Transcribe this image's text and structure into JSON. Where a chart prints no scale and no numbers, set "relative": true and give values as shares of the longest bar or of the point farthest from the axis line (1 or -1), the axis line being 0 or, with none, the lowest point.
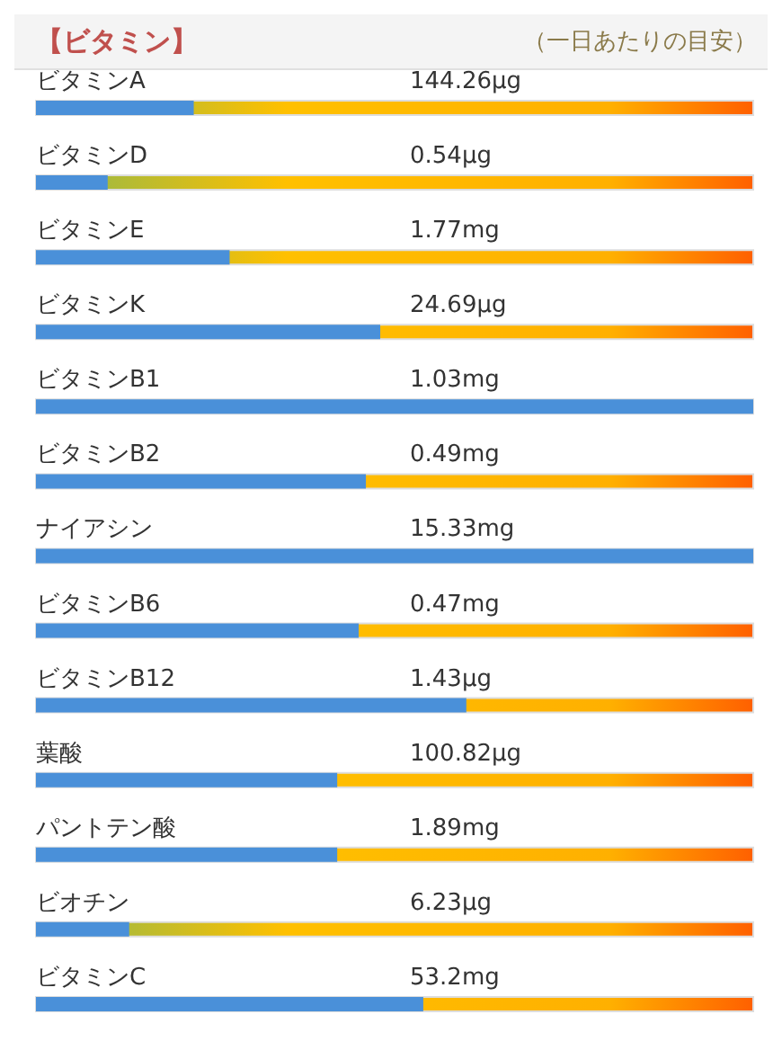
{
  "chart_data": {
    "type": "bar",
    "orientation": "horizontal",
    "relative": true,
    "title": "【ビタミン】",
    "subtitle": "（一日あたりの目安）",
    "categories": [
      "ビタミンA",
      "ビタミンD",
      "ビタミンE",
      "ビタミンK",
      "ビタミンB1",
      "ビタミンB2",
      "ナイアシン",
      "ビタミンB6",
      "ビタミンB12",
      "葉酸",
      "パントテン酸",
      "ビオチン",
      "ビタミンC"
    ],
    "values": [
      0.22,
      0.1,
      0.27,
      0.48,
      1,
      0.46,
      1,
      0.45,
      0.6,
      0.42,
      0.42,
      0.13,
      0.54
    ],
    "annotations": [
      "144.26μg",
      "0.54μg",
      "1.77mg",
      "24.69μg",
      "1.03mg",
      "0.49mg",
      "15.33mg",
      "0.47mg",
      "1.43μg",
      "100.82μg",
      "1.89mg",
      "6.23μg",
      "53.2mg"
    ],
    "color": "#4a90d9"
  }
}
